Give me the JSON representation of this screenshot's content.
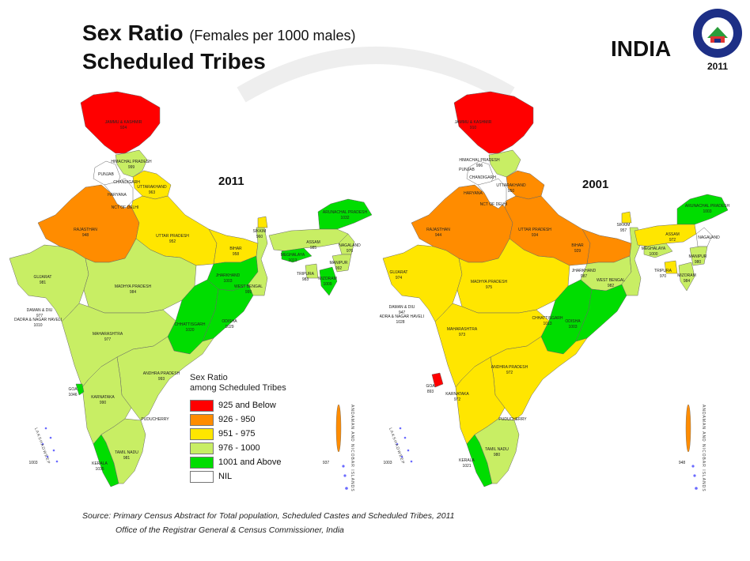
{
  "title": {
    "main": "Sex Ratio",
    "subtitle": "(Females per 1000 males)",
    "line2": "Scheduled Tribes"
  },
  "country": "INDIA",
  "seal": {
    "year": "2011"
  },
  "colors": {
    "c925": "#ff0000",
    "c926": "#ff8c00",
    "c951": "#ffe600",
    "c976": "#c8ee64",
    "c1001": "#00dd00",
    "nil": "#ffffff"
  },
  "legend": {
    "title_line1": "Sex Ratio",
    "title_line2": "among Scheduled Tribes",
    "items": [
      {
        "label": "925 and Below",
        "color": "#ff0000"
      },
      {
        "label": "926 - 950",
        "color": "#ff8c00"
      },
      {
        "label": "951 - 975",
        "color": "#ffe600"
      },
      {
        "label": "976 - 1000",
        "color": "#c8ee64"
      },
      {
        "label": "1001 and Above",
        "color": "#00dd00"
      },
      {
        "label": "NIL",
        "color": "#ffffff"
      }
    ]
  },
  "maps": [
    {
      "year": "2011",
      "states": {
        "jk": {
          "name": "JAMMU & KASHMIR",
          "value": "924"
        },
        "hp": {
          "name": "HIMACHAL PRADESH",
          "value": "999"
        },
        "pb": {
          "name": "PUNJAB",
          "value": ""
        },
        "ch": {
          "name": "CHANDIGARH",
          "value": ""
        },
        "uk": {
          "name": "UTTARAKHAND",
          "value": "963"
        },
        "hr": {
          "name": "HARYANA",
          "value": ""
        },
        "dl": {
          "name": "NCT OF DELHI",
          "value": ""
        },
        "rj": {
          "name": "RAJASTHAN",
          "value": "948"
        },
        "up": {
          "name": "UTTAR PRADESH",
          "value": "952"
        },
        "br": {
          "name": "BIHAR",
          "value": "958"
        },
        "sk": {
          "name": "SIKKIM",
          "value": "960"
        },
        "ar": {
          "name": "ARUNACHAL PRADESH",
          "value": "1032"
        },
        "as": {
          "name": "ASSAM",
          "value": "985"
        },
        "nl": {
          "name": "NAGALAND",
          "value": "976"
        },
        "ml": {
          "name": "MEGHALAYA",
          "value": "1013"
        },
        "mn": {
          "name": "MANIPUR",
          "value": "992"
        },
        "mz": {
          "name": "MIZORAM",
          "value": "1009"
        },
        "tr": {
          "name": "TRIPURA",
          "value": "983"
        },
        "gj": {
          "name": "GUJARAT",
          "value": "981"
        },
        "mp": {
          "name": "MADHYA PRADESH",
          "value": "984"
        },
        "jh": {
          "name": "JHARKHAND",
          "value": "1003"
        },
        "wb": {
          "name": "WEST BENGAL",
          "value": "999"
        },
        "cg": {
          "name": "CHHATTISGARH",
          "value": "1020"
        },
        "od": {
          "name": "ODISHA",
          "value": "1029"
        },
        "dd": {
          "name": "DAMAN & DIU",
          "value": "977"
        },
        "dnh": {
          "name": "DADRA & NAGAR HAVELI",
          "value": "1010"
        },
        "mh": {
          "name": "MAHARASHTRA",
          "value": "977"
        },
        "ap": {
          "name": "ANDHRA PRADESH",
          "value": "993"
        },
        "ga": {
          "name": "GOA",
          "value": "1046"
        },
        "ka": {
          "name": "KARNATAKA",
          "value": "990"
        },
        "py": {
          "name": "PUDUCHERRY",
          "value": ""
        },
        "tn": {
          "name": "TAMIL NADU",
          "value": "981"
        },
        "kl": {
          "name": "KERALA",
          "value": "1035"
        },
        "ld": {
          "name": "",
          "value": "1003"
        },
        "an": {
          "name": "",
          "value": "937"
        }
      }
    },
    {
      "year": "2001",
      "states": {
        "jk": {
          "name": "JAMMU & KASHMIR",
          "value": "910"
        },
        "hp": {
          "name": "HIMACHAL PRADESH",
          "value": "996"
        },
        "pb": {
          "name": "PUNJAB",
          "value": ""
        },
        "ch": {
          "name": "CHANDIGARH",
          "value": ""
        },
        "uk": {
          "name": "UTTARAKHAND",
          "value": "950"
        },
        "hr": {
          "name": "HARYANA",
          "value": ""
        },
        "dl": {
          "name": "NCT OF DELHI",
          "value": ""
        },
        "rj": {
          "name": "RAJASTHAN",
          "value": "944"
        },
        "up": {
          "name": "UTTAR PRADESH",
          "value": "934"
        },
        "br": {
          "name": "BIHAR",
          "value": "929"
        },
        "sk": {
          "name": "SIKKIM",
          "value": "957"
        },
        "ar": {
          "name": "ARUNACHAL PRADESH",
          "value": "1003"
        },
        "as": {
          "name": "ASSAM",
          "value": "972"
        },
        "nl": {
          "name": "NAGALAND",
          "value": ""
        },
        "ml": {
          "name": "MEGHALAYA",
          "value": "1000"
        },
        "mn": {
          "name": "MANIPUR",
          "value": "980"
        },
        "mz": {
          "name": "MIZORAM",
          "value": "984"
        },
        "tr": {
          "name": "TRIPURA",
          "value": "970"
        },
        "gj": {
          "name": "GUJARAT",
          "value": "974"
        },
        "mp": {
          "name": "MADHYA PRADESH",
          "value": "975"
        },
        "jh": {
          "name": "JHARKHAND",
          "value": "987"
        },
        "wb": {
          "name": "WEST BENGAL",
          "value": "982"
        },
        "cg": {
          "name": "CHHATTISGARH",
          "value": "1013"
        },
        "od": {
          "name": "ODISHA",
          "value": "1003"
        },
        "dd": {
          "name": "DAMAN & DIU",
          "value": "947"
        },
        "dnh": {
          "name": "DADRA & NAGAR HAVELI",
          "value": "1028"
        },
        "mh": {
          "name": "MAHARASHTRA",
          "value": "973"
        },
        "ap": {
          "name": "ANDHRA PRADESH",
          "value": "972"
        },
        "ga": {
          "name": "GOA",
          "value": "893"
        },
        "ka": {
          "name": "KARNATAKA",
          "value": "972"
        },
        "py": {
          "name": "PUDUCHERRY",
          "value": ""
        },
        "tn": {
          "name": "TAMIL NADU",
          "value": "980"
        },
        "kl": {
          "name": "KERALA",
          "value": "1021"
        },
        "ld": {
          "name": "",
          "value": "1003"
        },
        "an": {
          "name": "",
          "value": "948"
        }
      }
    }
  ],
  "islands": {
    "lakshadweep": "LAKSHADWEEP",
    "andaman": "ANDAMAN AND NICOBAR ISLANDS"
  },
  "source": {
    "line1": "Source: Primary Census Abstract for Total population, Scheduled Castes and Scheduled Tribes, 2011",
    "line2": "Office of the Registrar General & Census Commissioner, India"
  }
}
